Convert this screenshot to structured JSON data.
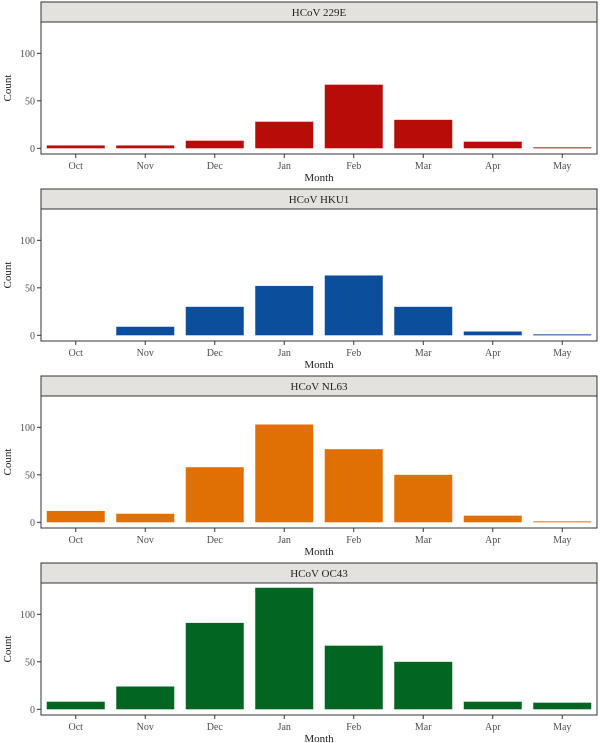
{
  "chart_data": [
    {
      "type": "bar",
      "title": "HCoV 229E",
      "categories": [
        "Oct",
        "Nov",
        "Dec",
        "Jan",
        "Feb",
        "Mar",
        "Apr",
        "May"
      ],
      "values": [
        3,
        3,
        8,
        28,
        67,
        30,
        7,
        1
      ],
      "color": "#b80c09",
      "xlabel": "Month",
      "ylabel": "Count",
      "yticks": [
        0,
        50,
        100
      ],
      "ylim": [
        -6,
        133
      ]
    },
    {
      "type": "bar",
      "title": "HCoV HKU1",
      "categories": [
        "Oct",
        "Nov",
        "Dec",
        "Jan",
        "Feb",
        "Mar",
        "Apr",
        "May"
      ],
      "values": [
        0,
        9,
        30,
        52,
        63,
        30,
        4,
        1
      ],
      "color": "#0b4f9c",
      "xlabel": "Month",
      "ylabel": "Count",
      "yticks": [
        0,
        50,
        100
      ],
      "ylim": [
        -6,
        133
      ]
    },
    {
      "type": "bar",
      "title": "HCoV NL63",
      "categories": [
        "Oct",
        "Nov",
        "Dec",
        "Jan",
        "Feb",
        "Mar",
        "Apr",
        "May"
      ],
      "values": [
        12,
        9,
        58,
        103,
        77,
        50,
        7,
        1
      ],
      "color": "#e07004",
      "xlabel": "Month",
      "ylabel": "Count",
      "yticks": [
        0,
        50,
        100
      ],
      "ylim": [
        -6,
        133
      ]
    },
    {
      "type": "bar",
      "title": "HCoV OC43",
      "categories": [
        "Oct",
        "Nov",
        "Dec",
        "Jan",
        "Feb",
        "Mar",
        "Apr",
        "May"
      ],
      "values": [
        8,
        24,
        91,
        128,
        67,
        50,
        8,
        7
      ],
      "color": "#026522",
      "xlabel": "Month",
      "ylabel": "Count",
      "yticks": [
        0,
        50,
        100
      ],
      "ylim": [
        -6,
        133
      ]
    }
  ]
}
